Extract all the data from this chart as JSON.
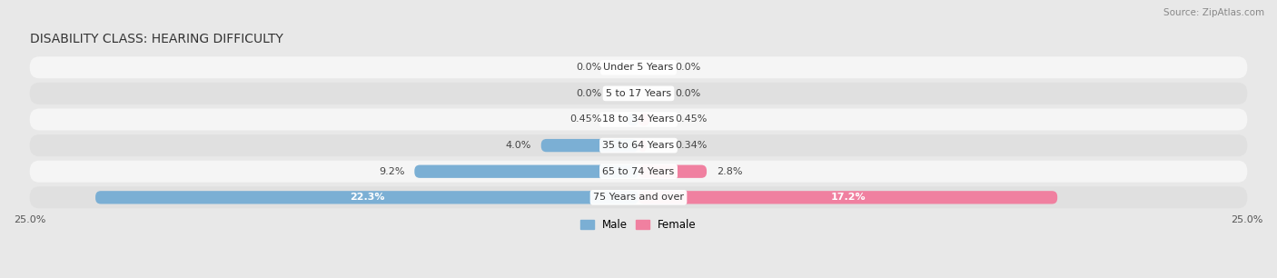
{
  "title": "DISABILITY CLASS: HEARING DIFFICULTY",
  "source": "Source: ZipAtlas.com",
  "categories": [
    "Under 5 Years",
    "5 to 17 Years",
    "18 to 34 Years",
    "35 to 64 Years",
    "65 to 74 Years",
    "75 Years and over"
  ],
  "male_values": [
    0.0,
    0.0,
    0.45,
    4.0,
    9.2,
    22.3
  ],
  "female_values": [
    0.0,
    0.0,
    0.45,
    0.34,
    2.8,
    17.2
  ],
  "male_color": "#7bafd4",
  "female_color": "#f080a0",
  "male_label": "Male",
  "female_label": "Female",
  "x_max": 25.0,
  "bg_color": "#e8e8e8",
  "row_color_light": "#f5f5f5",
  "row_color_dark": "#e0e0e0",
  "title_fontsize": 10,
  "label_fontsize": 8,
  "tick_fontsize": 8,
  "source_fontsize": 7.5
}
